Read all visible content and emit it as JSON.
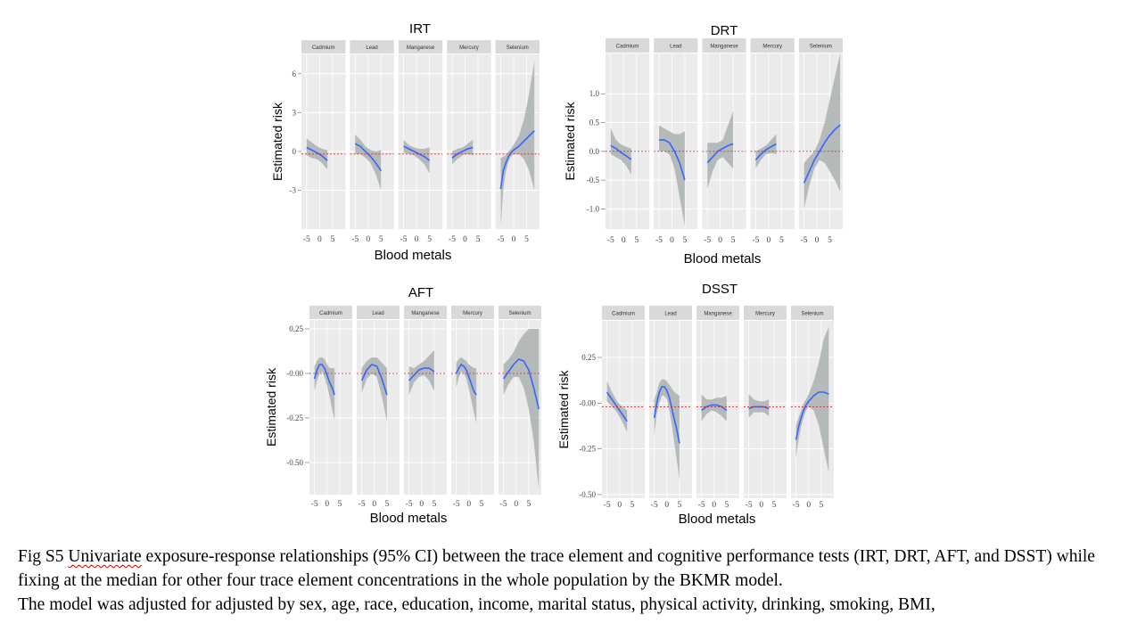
{
  "caption": {
    "prefix": "Fig S5 ",
    "underlined": "Univariate",
    "text_1": " exposure-response relationships (95% CI) between the trace element and cognitive performance tests (IRT, DRT, AFT, and DSST) while fixing at the median for other four trace element concentrations in the whole population by the BKMR model.",
    "text_2": "The model was adjusted for adjusted by sex, age, race, education, income, marital status, physical activity, drinking, smoking, BMI,"
  },
  "colors": {
    "panel_bg": "#ebebeb",
    "strip_bg": "#d9d9d9",
    "grid": "#ffffff",
    "line": "#3366ff",
    "ribbon": "#aab2b1",
    "reference": "#d62728"
  },
  "chart_data": [
    {
      "type": "line",
      "title": "IRT",
      "xlabel": "Blood metals",
      "ylabel": "Estimated risk",
      "facets": [
        "Cadmium",
        "Lead",
        "Manganese",
        "Mercury",
        "Selenium"
      ],
      "y_ticks": [
        "6",
        "3",
        "0",
        "-3"
      ],
      "y_tick_values": [
        6,
        3,
        0,
        -3
      ],
      "ylim": [
        -6,
        7.5
      ],
      "x_ticks": [
        "-5",
        "0",
        "5"
      ],
      "xlim": [
        -7,
        10
      ],
      "reference_y": -0.2,
      "series": [
        {
          "facet": "Cadmium",
          "x": [
            -5,
            -3,
            -1,
            1,
            3
          ],
          "y": [
            0.3,
            0.1,
            -0.1,
            -0.35,
            -0.7
          ],
          "lower": [
            -0.3,
            -0.5,
            -0.6,
            -0.9,
            -1.4
          ],
          "upper": [
            1.0,
            0.7,
            0.4,
            0.2,
            0.1
          ]
        },
        {
          "facet": "Lead",
          "x": [
            -5,
            -3,
            -1,
            1,
            3,
            5
          ],
          "y": [
            0.6,
            0.4,
            0.0,
            -0.4,
            -0.9,
            -1.5
          ],
          "lower": [
            -0.2,
            -0.2,
            -0.5,
            -0.9,
            -1.8,
            -3.0
          ],
          "upper": [
            1.3,
            0.9,
            0.4,
            0.1,
            0.0,
            0.1
          ]
        },
        {
          "facet": "Manganese",
          "x": [
            -5,
            -3,
            -1,
            1,
            3,
            5
          ],
          "y": [
            0.4,
            0.2,
            0.0,
            -0.2,
            -0.4,
            -0.7
          ],
          "lower": [
            -0.1,
            -0.2,
            -0.3,
            -0.6,
            -1.0,
            -1.7
          ],
          "upper": [
            0.9,
            0.5,
            0.3,
            0.2,
            0.2,
            0.3
          ]
        },
        {
          "facet": "Mercury",
          "x": [
            -5,
            -3,
            -1,
            1,
            3
          ],
          "y": [
            -0.5,
            -0.2,
            0.0,
            0.2,
            0.3
          ],
          "lower": [
            -1.0,
            -0.6,
            -0.3,
            -0.2,
            -0.3
          ],
          "upper": [
            0.0,
            0.2,
            0.3,
            0.6,
            0.9
          ]
        },
        {
          "facet": "Selenium",
          "x": [
            -5,
            -4,
            -3,
            -2,
            -1,
            0,
            2,
            4,
            6,
            8
          ],
          "y": [
            -2.9,
            -1.5,
            -0.9,
            -0.4,
            -0.1,
            0.1,
            0.4,
            0.8,
            1.2,
            1.6
          ],
          "lower": [
            -6.0,
            -3.0,
            -1.6,
            -0.8,
            -0.4,
            -0.2,
            -0.2,
            -0.6,
            -1.5,
            -3.0
          ],
          "upper": [
            -0.5,
            -0.4,
            -0.3,
            0.0,
            0.2,
            0.5,
            1.2,
            2.5,
            4.5,
            7.0
          ]
        }
      ]
    },
    {
      "type": "line",
      "title": "DRT",
      "xlabel": "Blood metals",
      "ylabel": "Estimated risk",
      "facets": [
        "Cadmium",
        "Lead",
        "Manganese",
        "Mercury",
        "Selenium"
      ],
      "y_ticks": [
        "1.0",
        "0.5",
        "0.0",
        "-0.5",
        "-1.0"
      ],
      "y_tick_values": [
        1.0,
        0.5,
        0.0,
        -0.5,
        -1.0
      ],
      "ylim": [
        -1.35,
        1.7
      ],
      "x_ticks": [
        "-5",
        "0",
        "5"
      ],
      "xlim": [
        -7,
        10
      ],
      "reference_y": 0.0,
      "series": [
        {
          "facet": "Cadmium",
          "x": [
            -5,
            -3,
            -1,
            1,
            3
          ],
          "y": [
            0.1,
            0.05,
            -0.02,
            -0.08,
            -0.14
          ],
          "lower": [
            -0.05,
            -0.1,
            -0.15,
            -0.25,
            -0.4
          ],
          "upper": [
            0.4,
            0.2,
            0.12,
            0.08,
            0.05
          ]
        },
        {
          "facet": "Lead",
          "x": [
            -5,
            -3,
            -1,
            1,
            3,
            5
          ],
          "y": [
            0.2,
            0.2,
            0.15,
            0.0,
            -0.2,
            -0.5
          ],
          "lower": [
            0.0,
            0.0,
            -0.05,
            -0.3,
            -0.8,
            -1.3
          ],
          "upper": [
            0.45,
            0.4,
            0.35,
            0.3,
            0.3,
            0.35
          ]
        },
        {
          "facet": "Manganese",
          "x": [
            -5,
            -3,
            -1,
            1,
            3,
            5
          ],
          "y": [
            -0.2,
            -0.1,
            0.0,
            0.05,
            0.1,
            0.13
          ],
          "lower": [
            -0.65,
            -0.35,
            -0.15,
            -0.1,
            -0.2,
            -0.3
          ],
          "upper": [
            0.15,
            0.15,
            0.15,
            0.2,
            0.45,
            0.7
          ]
        },
        {
          "facet": "Mercury",
          "x": [
            -5,
            -3,
            -1,
            1,
            3
          ],
          "y": [
            -0.15,
            -0.05,
            0.03,
            0.08,
            0.13
          ],
          "lower": [
            -0.3,
            -0.15,
            -0.05,
            -0.03,
            -0.05
          ],
          "upper": [
            0.0,
            0.05,
            0.1,
            0.2,
            0.3
          ]
        },
        {
          "facet": "Selenium",
          "x": [
            -5,
            -3,
            -1,
            1,
            3,
            5,
            7,
            9
          ],
          "y": [
            -0.55,
            -0.35,
            -0.15,
            0.0,
            0.15,
            0.28,
            0.38,
            0.46
          ],
          "lower": [
            -1.0,
            -0.6,
            -0.3,
            -0.15,
            -0.2,
            -0.35,
            -0.5,
            -0.7
          ],
          "upper": [
            -0.2,
            -0.1,
            0.0,
            0.2,
            0.5,
            0.9,
            1.3,
            1.7
          ]
        }
      ]
    },
    {
      "type": "line",
      "title": "AFT",
      "xlabel": "Blood metals",
      "ylabel": "Estimated risk",
      "facets": [
        "Cadmium",
        "Lead",
        "Manganese",
        "Mercury",
        "Selenium"
      ],
      "y_ticks": [
        "0.25",
        "-0.00",
        "-0.25",
        "-0.50"
      ],
      "y_tick_values": [
        0.25,
        0.0,
        -0.25,
        -0.5
      ],
      "ylim": [
        -0.68,
        0.3
      ],
      "x_ticks": [
        "-5",
        "0",
        "5"
      ],
      "xlim": [
        -7,
        10
      ],
      "reference_y": 0.0,
      "series": [
        {
          "facet": "Cadmium",
          "x": [
            -5,
            -4,
            -3,
            -2,
            -1,
            0,
            1,
            2,
            3
          ],
          "y": [
            -0.03,
            0.02,
            0.05,
            0.05,
            0.03,
            -0.01,
            -0.05,
            -0.08,
            -0.12
          ],
          "lower": [
            -0.1,
            -0.04,
            0.0,
            0.01,
            -0.02,
            -0.07,
            -0.13,
            -0.2,
            -0.26
          ],
          "upper": [
            0.04,
            0.07,
            0.09,
            0.09,
            0.08,
            0.05,
            0.03,
            0.03,
            0.03
          ]
        },
        {
          "facet": "Lead",
          "x": [
            -5,
            -3,
            -1,
            1,
            3,
            5
          ],
          "y": [
            -0.04,
            0.02,
            0.05,
            0.04,
            -0.03,
            -0.12
          ],
          "lower": [
            -0.11,
            -0.03,
            0.0,
            -0.02,
            -0.13,
            -0.27
          ],
          "upper": [
            0.03,
            0.07,
            0.09,
            0.09,
            0.06,
            0.03
          ]
        },
        {
          "facet": "Manganese",
          "x": [
            -5,
            -3,
            -1,
            1,
            3,
            5
          ],
          "y": [
            -0.04,
            -0.01,
            0.02,
            0.03,
            0.03,
            0.01
          ],
          "lower": [
            -0.12,
            -0.05,
            -0.02,
            -0.01,
            -0.04,
            -0.1
          ],
          "upper": [
            0.04,
            0.03,
            0.05,
            0.07,
            0.1,
            0.13
          ]
        },
        {
          "facet": "Mercury",
          "x": [
            -5,
            -4,
            -3,
            -2,
            -1,
            0,
            1,
            2,
            3
          ],
          "y": [
            0.0,
            0.03,
            0.05,
            0.04,
            0.02,
            -0.02,
            -0.06,
            -0.1,
            -0.12
          ],
          "lower": [
            -0.08,
            -0.02,
            0.01,
            0.0,
            -0.03,
            -0.09,
            -0.15,
            -0.22,
            -0.28
          ],
          "upper": [
            0.06,
            0.08,
            0.09,
            0.08,
            0.07,
            0.05,
            0.04,
            0.03,
            0.03
          ]
        },
        {
          "facet": "Selenium",
          "x": [
            -5,
            -3,
            -1,
            1,
            3,
            5,
            7,
            9
          ],
          "y": [
            -0.03,
            0.01,
            0.05,
            0.08,
            0.07,
            0.02,
            -0.08,
            -0.2
          ],
          "lower": [
            -0.12,
            -0.06,
            -0.02,
            -0.02,
            -0.08,
            -0.2,
            -0.38,
            -0.65
          ],
          "upper": [
            0.05,
            0.08,
            0.12,
            0.18,
            0.22,
            0.25,
            0.25,
            0.25
          ]
        }
      ]
    },
    {
      "type": "line",
      "title": "DSST",
      "xlabel": "Blood metals",
      "ylabel": "Estimated risk",
      "facets": [
        "Cadmium",
        "Lead",
        "Manganese",
        "Mercury",
        "Selenium"
      ],
      "y_ticks": [
        "0.25",
        "-0.00",
        "-0.25",
        "-0.50"
      ],
      "y_tick_values": [
        0.25,
        0.0,
        -0.25,
        -0.5
      ],
      "ylim": [
        -0.52,
        0.45
      ],
      "x_ticks": [
        "-5",
        "0",
        "5"
      ],
      "xlim": [
        -7,
        10
      ],
      "reference_y": -0.02,
      "series": [
        {
          "facet": "Cadmium",
          "x": [
            -5,
            -3,
            -1,
            1,
            3
          ],
          "y": [
            0.06,
            0.02,
            -0.02,
            -0.06,
            -0.1
          ],
          "lower": [
            0.01,
            -0.02,
            -0.05,
            -0.1,
            -0.16
          ],
          "upper": [
            0.12,
            0.06,
            0.01,
            -0.02,
            -0.04
          ]
        },
        {
          "facet": "Lead",
          "x": [
            -5,
            -4,
            -3,
            -2,
            -1,
            0,
            1,
            2,
            3,
            4,
            5
          ],
          "y": [
            -0.08,
            0.0,
            0.06,
            0.09,
            0.09,
            0.07,
            0.03,
            -0.03,
            -0.09,
            -0.15,
            -0.22
          ],
          "lower": [
            -0.18,
            -0.06,
            0.0,
            0.04,
            0.04,
            0.02,
            -0.04,
            -0.12,
            -0.22,
            -0.32,
            -0.42
          ],
          "upper": [
            0.02,
            0.06,
            0.11,
            0.13,
            0.13,
            0.12,
            0.1,
            0.08,
            0.06,
            0.05,
            0.04
          ]
        },
        {
          "facet": "Manganese",
          "x": [
            -5,
            -3,
            -1,
            1,
            3,
            5
          ],
          "y": [
            -0.04,
            -0.02,
            -0.01,
            -0.01,
            -0.02,
            -0.04
          ],
          "lower": [
            -0.1,
            -0.06,
            -0.04,
            -0.05,
            -0.07,
            -0.1
          ],
          "upper": [
            0.05,
            0.02,
            0.02,
            0.03,
            0.03,
            0.04
          ]
        },
        {
          "facet": "Mercury",
          "x": [
            -5,
            -3,
            -1,
            1,
            3
          ],
          "y": [
            -0.03,
            -0.02,
            -0.02,
            -0.02,
            -0.03
          ],
          "lower": [
            -0.08,
            -0.05,
            -0.05,
            -0.05,
            -0.07
          ],
          "upper": [
            0.05,
            0.02,
            0.01,
            0.01,
            0.02
          ]
        },
        {
          "facet": "Selenium",
          "x": [
            -5,
            -4,
            -3,
            -2,
            -1,
            0,
            2,
            4,
            6,
            8
          ],
          "y": [
            -0.2,
            -0.13,
            -0.08,
            -0.04,
            -0.01,
            0.01,
            0.04,
            0.06,
            0.06,
            0.05
          ],
          "lower": [
            -0.3,
            -0.2,
            -0.13,
            -0.08,
            -0.04,
            -0.02,
            -0.04,
            -0.12,
            -0.25,
            -0.38
          ],
          "upper": [
            -0.12,
            -0.08,
            -0.04,
            0.0,
            0.02,
            0.05,
            0.12,
            0.22,
            0.35,
            0.42
          ]
        }
      ]
    }
  ]
}
